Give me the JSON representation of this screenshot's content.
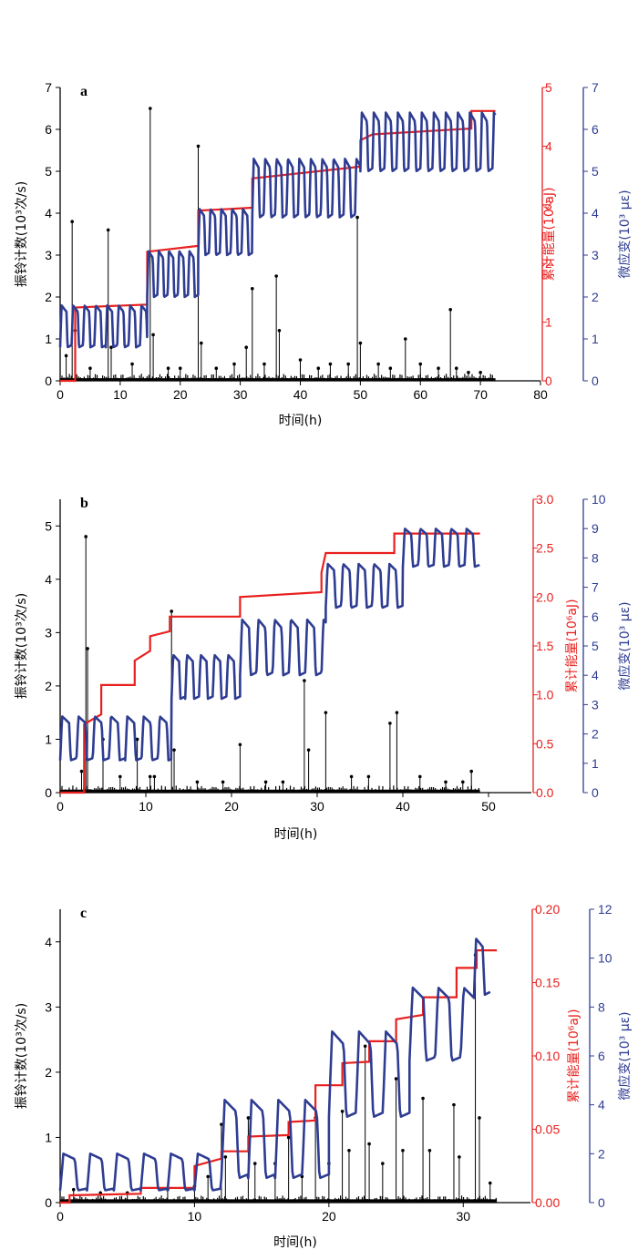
{
  "colors": {
    "counts": "#000000",
    "energy": "#e8201e",
    "strain": "#2e3c92"
  },
  "chart_data": [
    {
      "type": "line",
      "panel": "a",
      "xlabel": "时间(h)",
      "ylabels": {
        "left": "振铃计数(10³次/s)",
        "right1": "累计能量(10⁶aJ)",
        "right2": "微应变(10³ με)"
      },
      "xlim": [
        0,
        80
      ],
      "xticks": [
        0,
        10,
        20,
        30,
        40,
        50,
        60,
        70,
        80
      ],
      "left": {
        "ylim": [
          0,
          7
        ],
        "ticks": [
          0,
          1,
          2,
          3,
          4,
          5,
          6,
          7
        ],
        "labels": [
          "0",
          "1",
          "2",
          "3",
          "4",
          "5",
          "6",
          "7"
        ]
      },
      "right1": {
        "ylim": [
          0,
          5
        ],
        "ticks": [
          0,
          1,
          2,
          3,
          4,
          5
        ],
        "labels": [
          "0",
          "1",
          "2",
          "3",
          "4",
          "5"
        ]
      },
      "right2": {
        "ylim": [
          0,
          7
        ],
        "ticks": [
          0,
          1,
          2,
          3,
          4,
          5,
          6,
          7
        ],
        "labels": [
          "0",
          "1",
          "2",
          "3",
          "4",
          "5",
          "6",
          "7"
        ]
      },
      "series": [
        {
          "name": "振铃计数",
          "axis": "left",
          "baseline_x": [
            0,
            72.5
          ],
          "spikes": [
            [
              1,
              0.6
            ],
            [
              2,
              3.8
            ],
            [
              2.5,
              1.2
            ],
            [
              5,
              0.3
            ],
            [
              8,
              3.6
            ],
            [
              8.5,
              0.8
            ],
            [
              12,
              0.4
            ],
            [
              15,
              6.5
            ],
            [
              15.5,
              1.1
            ],
            [
              18,
              0.3
            ],
            [
              20,
              0.3
            ],
            [
              23,
              5.6
            ],
            [
              23.5,
              0.9
            ],
            [
              26,
              0.3
            ],
            [
              29,
              0.4
            ],
            [
              31,
              0.8
            ],
            [
              32,
              2.2
            ],
            [
              34,
              0.4
            ],
            [
              36,
              2.5
            ],
            [
              36.5,
              1.2
            ],
            [
              40,
              0.5
            ],
            [
              43,
              0.3
            ],
            [
              45,
              0.4
            ],
            [
              48,
              0.4
            ],
            [
              49.5,
              3.9
            ],
            [
              50,
              0.9
            ],
            [
              53,
              0.4
            ],
            [
              55,
              0.3
            ],
            [
              57.5,
              1.0
            ],
            [
              60,
              0.4
            ],
            [
              63,
              0.3
            ],
            [
              65,
              1.7
            ],
            [
              66,
              0.3
            ],
            [
              68,
              0.2
            ],
            [
              70,
              0.2
            ]
          ]
        },
        {
          "name": "累计能量",
          "axis": "right1",
          "steps": [
            [
              0,
              0
            ],
            [
              2.5,
              0
            ],
            [
              2.5,
              1.25
            ],
            [
              14.5,
              1.3
            ],
            [
              14.5,
              2.2
            ],
            [
              23,
              2.3
            ],
            [
              23,
              2.9
            ],
            [
              32,
              2.95
            ],
            [
              32,
              3.45
            ],
            [
              50,
              3.65
            ],
            [
              50,
              4.1
            ],
            [
              52,
              4.2
            ],
            [
              68.5,
              4.3
            ],
            [
              68.5,
              4.6
            ],
            [
              72.5,
              4.6
            ]
          ]
        },
        {
          "name": "微应变",
          "axis": "right2",
          "segments": [
            {
              "start": 0,
              "end": 14.5,
              "lo": 0.8,
              "hi": 1.8,
              "period": 1.9
            },
            {
              "start": 14.5,
              "end": 23,
              "lo": 2.0,
              "hi": 3.1,
              "period": 1.7
            },
            {
              "start": 23,
              "end": 32,
              "lo": 3.0,
              "hi": 4.1,
              "period": 1.8
            },
            {
              "start": 32,
              "end": 50,
              "lo": 3.9,
              "hi": 5.3,
              "period": 1.9
            },
            {
              "start": 50,
              "end": 72.5,
              "lo": 5.0,
              "hi": 6.4,
              "period": 2.0
            }
          ]
        }
      ]
    },
    {
      "type": "line",
      "panel": "b",
      "xlabel": "时间(h)",
      "ylabels": {
        "left": "振铃计数(10³次/s)",
        "right1": "累计能量(10⁶aJ)",
        "right2": "微应变(10³ με)"
      },
      "xlim": [
        0,
        55
      ],
      "xticks": [
        0,
        10,
        20,
        30,
        40,
        50
      ],
      "left": {
        "ylim": [
          0,
          5.5
        ],
        "ticks": [
          0,
          1,
          2,
          3,
          4,
          5
        ],
        "labels": [
          "0",
          "1",
          "2",
          "3",
          "4",
          "5"
        ]
      },
      "right1": {
        "ylim": [
          0,
          3.0
        ],
        "ticks": [
          0,
          0.5,
          1.0,
          1.5,
          2.0,
          2.5,
          3.0
        ],
        "labels": [
          "0.0",
          "0.5",
          "1.0",
          "1.5",
          "2.0",
          "2.5",
          "3.0"
        ]
      },
      "right2": {
        "ylim": [
          0,
          10
        ],
        "ticks": [
          0,
          1,
          2,
          3,
          4,
          5,
          6,
          7,
          8,
          9,
          10
        ],
        "labels": [
          "0",
          "1",
          "2",
          "3",
          "4",
          "5",
          "6",
          "7",
          "8",
          "9",
          "10"
        ]
      },
      "series": [
        {
          "name": "振铃计数",
          "axis": "left",
          "baseline_x": [
            0,
            49
          ],
          "spikes": [
            [
              2.5,
              0.4
            ],
            [
              3,
              4.8
            ],
            [
              3.2,
              2.7
            ],
            [
              5,
              1.0
            ],
            [
              7,
              0.3
            ],
            [
              9,
              1.0
            ],
            [
              10.5,
              0.3
            ],
            [
              11,
              0.3
            ],
            [
              13,
              3.4
            ],
            [
              13.3,
              0.8
            ],
            [
              16,
              0.2
            ],
            [
              19,
              0.2
            ],
            [
              21,
              0.9
            ],
            [
              24,
              0.2
            ],
            [
              26,
              0.2
            ],
            [
              28.5,
              2.1
            ],
            [
              29,
              0.8
            ],
            [
              31,
              1.5
            ],
            [
              34,
              0.3
            ],
            [
              36,
              0.3
            ],
            [
              38.5,
              1.3
            ],
            [
              39.3,
              1.5
            ],
            [
              42,
              0.3
            ],
            [
              45,
              0.2
            ],
            [
              47,
              0.2
            ],
            [
              48,
              0.4
            ]
          ]
        },
        {
          "name": "累计能量",
          "axis": "right1",
          "steps": [
            [
              0,
              0
            ],
            [
              2.8,
              0
            ],
            [
              2.8,
              0.7
            ],
            [
              4.8,
              0.8
            ],
            [
              4.8,
              1.1
            ],
            [
              8.7,
              1.1
            ],
            [
              8.7,
              1.35
            ],
            [
              10.5,
              1.45
            ],
            [
              10.5,
              1.6
            ],
            [
              12.8,
              1.65
            ],
            [
              12.8,
              1.8
            ],
            [
              21,
              1.8
            ],
            [
              21,
              2.0
            ],
            [
              30.5,
              2.05
            ],
            [
              30.5,
              2.25
            ],
            [
              31,
              2.45
            ],
            [
              39,
              2.45
            ],
            [
              39,
              2.65
            ],
            [
              49,
              2.65
            ]
          ]
        },
        {
          "name": "微应变",
          "axis": "right2",
          "segments": [
            {
              "start": 0,
              "end": 13,
              "lo": 1.1,
              "hi": 2.6,
              "period": 1.9
            },
            {
              "start": 13,
              "end": 21,
              "lo": 3.2,
              "hi": 4.7,
              "period": 1.6
            },
            {
              "start": 21,
              "end": 31,
              "lo": 4.0,
              "hi": 5.9,
              "period": 1.9
            },
            {
              "start": 31,
              "end": 40,
              "lo": 6.3,
              "hi": 7.8,
              "period": 1.8
            },
            {
              "start": 40,
              "end": 49,
              "lo": 7.7,
              "hi": 9.0,
              "period": 1.8
            }
          ]
        }
      ]
    },
    {
      "type": "line",
      "panel": "c",
      "xlabel": "时间(h)",
      "ylabels": {
        "left": "振铃计数(10³次/s)",
        "right1": "累计能量(10⁶aJ)",
        "right2": "微应变(10³ με)"
      },
      "xlim": [
        0,
        35
      ],
      "xticks": [
        0,
        10,
        20,
        30
      ],
      "left": {
        "ylim": [
          0,
          4.5
        ],
        "ticks": [
          0,
          1,
          2,
          3,
          4
        ],
        "labels": [
          "0",
          "1",
          "2",
          "3",
          "4"
        ]
      },
      "right1": {
        "ylim": [
          0,
          0.2
        ],
        "ticks": [
          0,
          0.05,
          0.1,
          0.15,
          0.2
        ],
        "labels": [
          "0.00",
          "0.05",
          "0.10",
          "0.15",
          "0.20"
        ]
      },
      "right2": {
        "ylim": [
          0,
          12
        ],
        "ticks": [
          0,
          2,
          4,
          6,
          8,
          10,
          12
        ],
        "labels": [
          "0",
          "2",
          "4",
          "6",
          "8",
          "10",
          "12"
        ]
      },
      "series": [
        {
          "name": "振铃计数",
          "axis": "left",
          "baseline_x": [
            0,
            32.5
          ],
          "spikes": [
            [
              1,
              0.2
            ],
            [
              3,
              0.15
            ],
            [
              5,
              0.15
            ],
            [
              8,
              0.2
            ],
            [
              10,
              0.25
            ],
            [
              11,
              0.4
            ],
            [
              12,
              1.2
            ],
            [
              12.3,
              0.7
            ],
            [
              14,
              1.3
            ],
            [
              14.5,
              0.6
            ],
            [
              16,
              0.6
            ],
            [
              17,
              1.0
            ],
            [
              18,
              0.4
            ],
            [
              19,
              1.3
            ],
            [
              20,
              0.6
            ],
            [
              21,
              1.4
            ],
            [
              21.5,
              0.8
            ],
            [
              22.7,
              2.4
            ],
            [
              23,
              0.9
            ],
            [
              24,
              0.6
            ],
            [
              25,
              1.9
            ],
            [
              25.5,
              0.8
            ],
            [
              27,
              1.6
            ],
            [
              27.5,
              0.8
            ],
            [
              29.3,
              1.5
            ],
            [
              29.7,
              0.7
            ],
            [
              30.9,
              3.8
            ],
            [
              31.2,
              1.3
            ],
            [
              32,
              0.3
            ]
          ]
        },
        {
          "name": "累计能量",
          "axis": "right1",
          "steps": [
            [
              0,
              0
            ],
            [
              0.7,
              0
            ],
            [
              0.7,
              0.005
            ],
            [
              6,
              0.006
            ],
            [
              6,
              0.01
            ],
            [
              10,
              0.01
            ],
            [
              10,
              0.025
            ],
            [
              12,
              0.03
            ],
            [
              12,
              0.035
            ],
            [
              14,
              0.035
            ],
            [
              14,
              0.045
            ],
            [
              17,
              0.046
            ],
            [
              17,
              0.055
            ],
            [
              19,
              0.056
            ],
            [
              19,
              0.08
            ],
            [
              21,
              0.08
            ],
            [
              21,
              0.095
            ],
            [
              23,
              0.096
            ],
            [
              23,
              0.11
            ],
            [
              25,
              0.11
            ],
            [
              25,
              0.125
            ],
            [
              27,
              0.128
            ],
            [
              27,
              0.14
            ],
            [
              29.5,
              0.14
            ],
            [
              29.5,
              0.16
            ],
            [
              31,
              0.16
            ],
            [
              31,
              0.172
            ],
            [
              32.5,
              0.172
            ]
          ]
        },
        {
          "name": "微应变",
          "axis": "right2",
          "segments": [
            {
              "start": 0,
              "end": 12,
              "lo": 0.5,
              "hi": 2.0,
              "period": 2.0
            },
            {
              "start": 12,
              "end": 20,
              "lo": 1.0,
              "hi": 4.2,
              "period": 2.0
            },
            {
              "start": 20,
              "end": 26,
              "lo": 3.5,
              "hi": 7.0,
              "period": 2.0
            },
            {
              "start": 26,
              "end": 30.8,
              "lo": 5.8,
              "hi": 8.8,
              "period": 1.9
            },
            {
              "start": 30.8,
              "end": 32,
              "lo": 8.5,
              "hi": 10.8,
              "period": 1.2
            }
          ]
        }
      ]
    }
  ]
}
